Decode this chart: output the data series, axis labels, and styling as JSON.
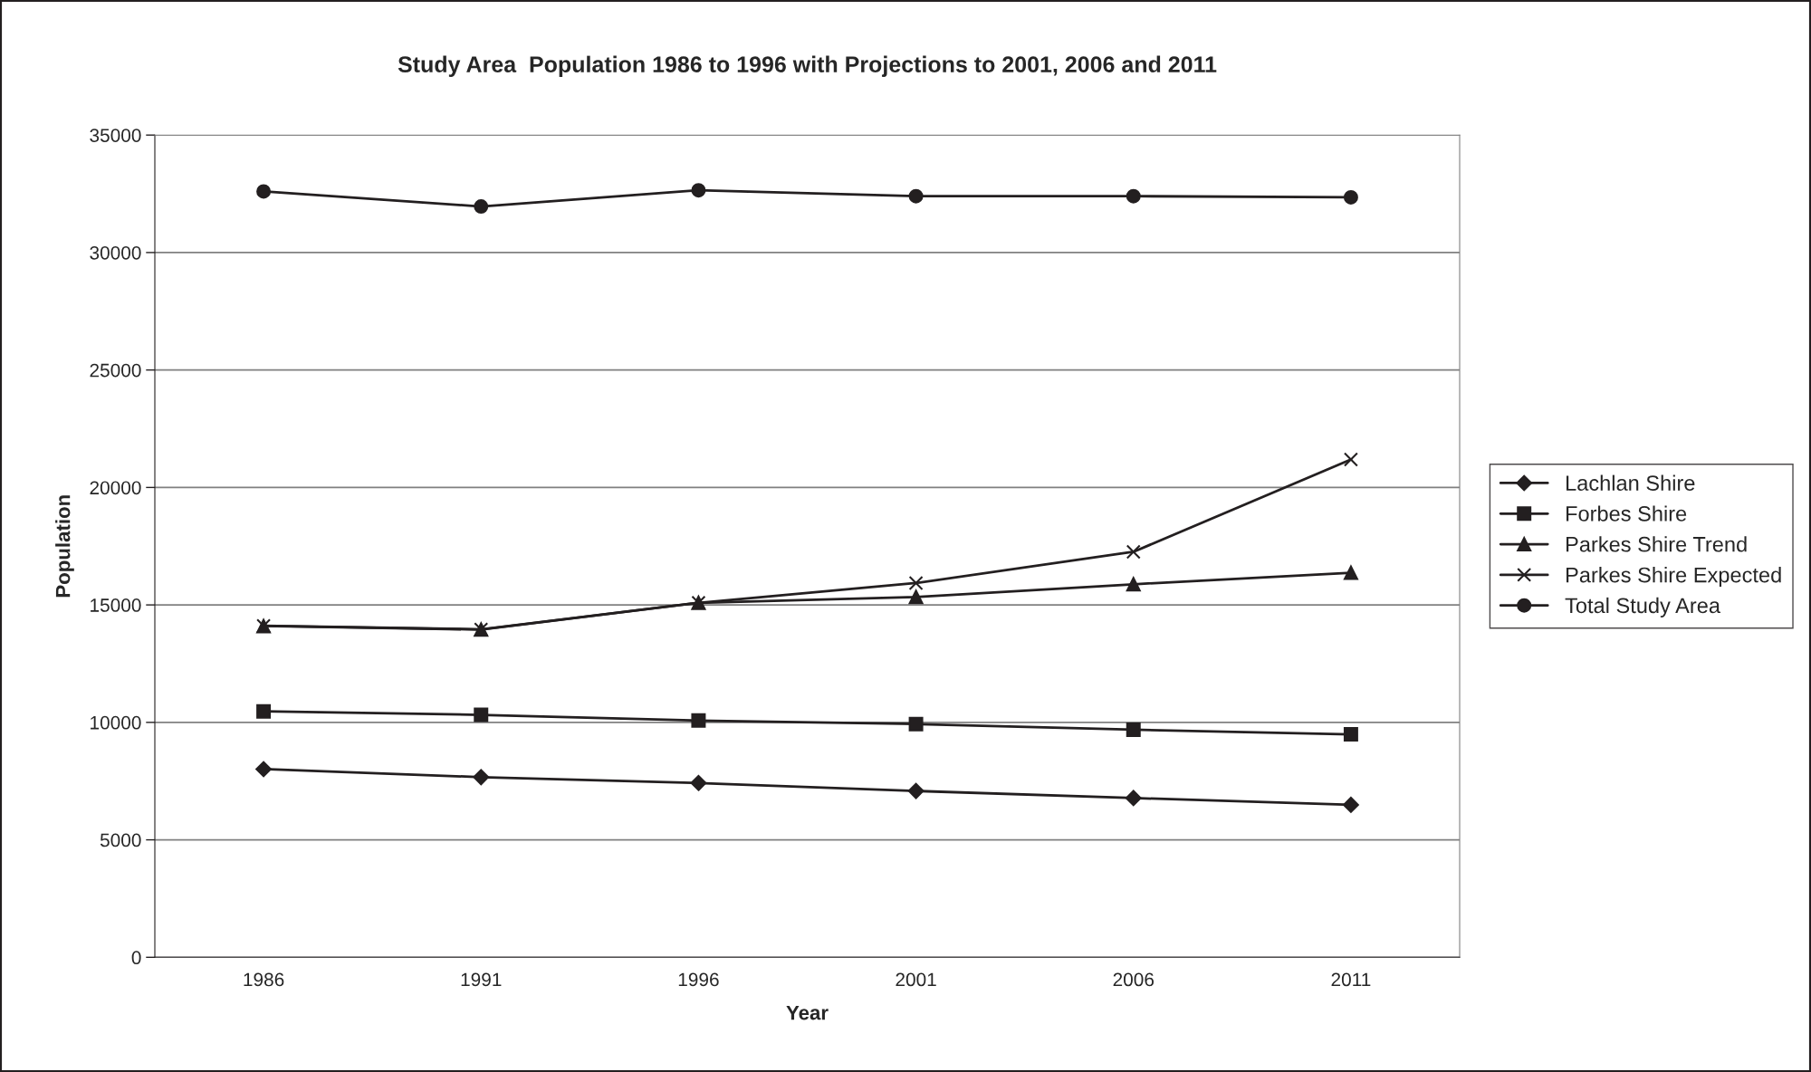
{
  "chart_data": {
    "type": "line",
    "title": "Study Area  Population 1986 to 1996 with Projections to 2001, 2006 and 2011",
    "xlabel": "Year",
    "ylabel": "Population",
    "categories": [
      "1986",
      "1991",
      "1996",
      "2001",
      "2006",
      "2011"
    ],
    "series": [
      {
        "name": "Lachlan Shire",
        "color": "#231f20",
        "marker": "diamond",
        "values": [
          8010,
          7670,
          7420,
          7080,
          6780,
          6490
        ]
      },
      {
        "name": "Forbes Shire",
        "color": "#231f20",
        "marker": "square",
        "values": [
          10470,
          10320,
          10080,
          9930,
          9690,
          9490
        ]
      },
      {
        "name": "Parkes Shire Trend",
        "color": "#231f20",
        "marker": "triangle",
        "values": [
          14100,
          13950,
          15090,
          15340,
          15880,
          16370
        ]
      },
      {
        "name": "Parkes Shire Expected",
        "color": "#231f20",
        "marker": "cross",
        "values": [
          14110,
          13960,
          15090,
          15930,
          17260,
          21190
        ]
      },
      {
        "name": "Total Study Area",
        "color": "#231f20",
        "marker": "circle",
        "values": [
          32600,
          31960,
          32650,
          32400,
          32400,
          32350
        ]
      }
    ],
    "ylim": [
      0,
      35000
    ],
    "yticks": [
      0,
      5000,
      10000,
      15000,
      20000,
      25000,
      30000,
      35000
    ],
    "grid": "y",
    "legend": "right",
    "line_style": "solid"
  }
}
